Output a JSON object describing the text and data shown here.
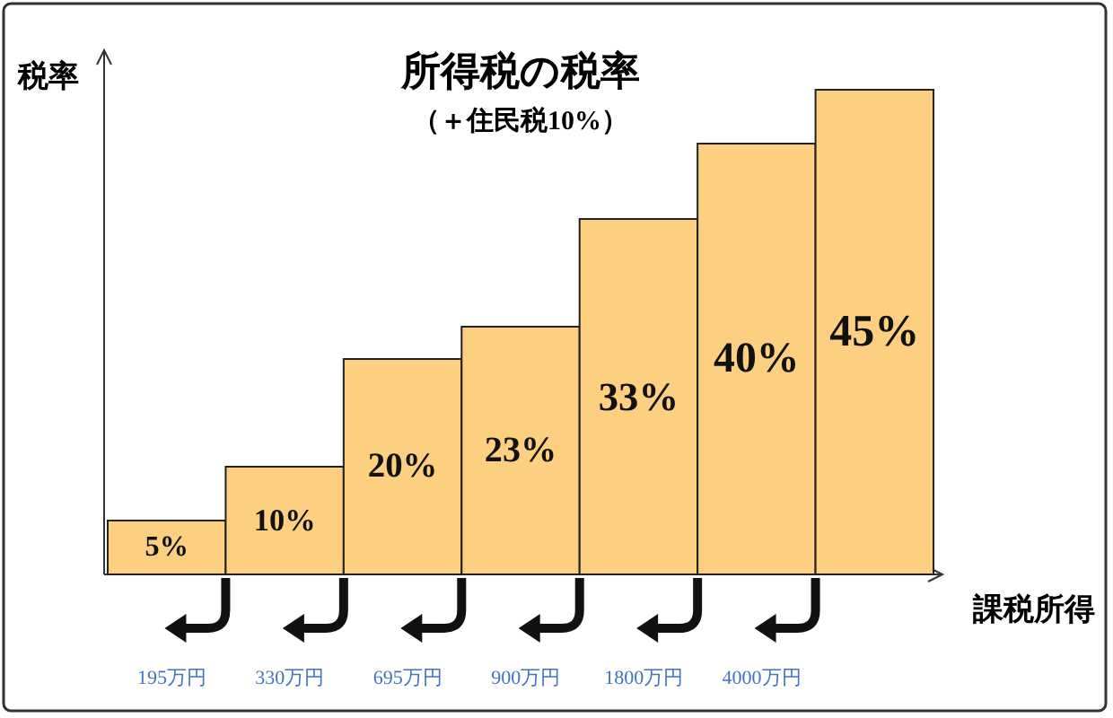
{
  "chart_data": {
    "type": "bar",
    "title": "所得税の税率",
    "subtitle": "（＋住民税10%）",
    "ylabel": "税率",
    "xlabel": "課税所得",
    "categories": [
      null,
      null,
      null,
      null,
      null,
      null,
      null
    ],
    "values": [
      5,
      10,
      20,
      23,
      33,
      40,
      45
    ],
    "value_labels": [
      "5%",
      "10%",
      "20%",
      "23%",
      "33%",
      "40%",
      "45%"
    ],
    "color": "#fcd080",
    "annotations": [
      "195万円",
      "330万円",
      "695万円",
      "900万円",
      "1800万円",
      "4000万円"
    ]
  }
}
